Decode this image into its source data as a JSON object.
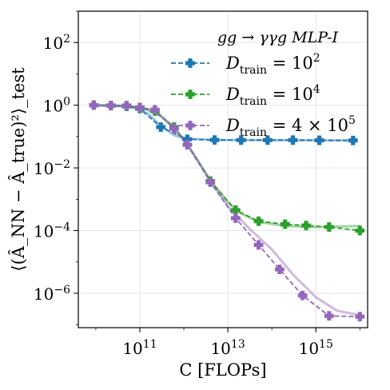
{
  "chart_data": {
    "type": "line",
    "title": "",
    "xlabel": "C [FLOPs]",
    "ylabel": "⟨(Â_NN − Â_true)²⟩_test",
    "xscale": "log",
    "yscale": "log",
    "xlim": [
      4000000000.0,
      1.5e+16
    ],
    "ylim": [
      8e-08,
      1000.0
    ],
    "xticks": [
      {
        "value": 100000000000.0,
        "label": "10^11"
      },
      {
        "value": 10000000000000.0,
        "label": "10^13"
      },
      {
        "value": 1000000000000000.0,
        "label": "10^15"
      }
    ],
    "yticks": [
      {
        "value": 1e-06,
        "label": "10^−6"
      },
      {
        "value": 0.0001,
        "label": "10^−4"
      },
      {
        "value": 0.01,
        "label": "10^−2"
      },
      {
        "value": 1,
        "label": "10^0"
      },
      {
        "value": 100,
        "label": "10^2"
      }
    ],
    "grid": true,
    "legend_placement": "top-right",
    "legend_title": "gg → γγg MLP-I",
    "series": [
      {
        "name": "D_train = 10^2",
        "color": "#1f77b4",
        "x": [
          9000000000.0,
          22000000000.0,
          50000000000.0,
          100000000000.0,
          300000000000.0,
          1200000000000.0,
          5000000000000.0,
          20000000000000.0,
          80000000000000.0,
          300000000000000.0,
          1200000000000000.0,
          7000000000000000.0
        ],
        "y": [
          1.0,
          0.97,
          0.92,
          0.78,
          0.2,
          0.082,
          0.078,
          0.077,
          0.077,
          0.077,
          0.076,
          0.075
        ],
        "fit": [
          [
            9000000000.0,
            1.0
          ],
          [
            30000000000.0,
            0.95
          ],
          [
            80000000000.0,
            0.82
          ],
          [
            150000000000.0,
            0.55
          ],
          [
            300000000000.0,
            0.22
          ],
          [
            600000000000.0,
            0.11
          ],
          [
            1200000000000.0,
            0.085
          ],
          [
            5000000000000.0,
            0.078
          ],
          [
            100000000000000.0,
            0.077
          ],
          [
            7000000000000000.0,
            0.075
          ]
        ]
      },
      {
        "name": "D_train = 10^4",
        "color": "#2ca02c",
        "x": [
          9000000000.0,
          22000000000.0,
          50000000000.0,
          100000000000.0,
          220000000000.0,
          600000000000.0,
          1200000000000.0,
          4000000000000.0,
          15000000000000.0,
          50000000000000.0,
          200000000000000.0,
          600000000000000.0,
          2000000000000000.0,
          1e+16
        ],
        "y": [
          1.0,
          0.98,
          0.95,
          0.82,
          0.65,
          0.2,
          0.055,
          0.0038,
          0.00045,
          0.0002,
          0.00016,
          0.000145,
          0.00013,
          0.0001
        ],
        "fit": [
          [
            9000000000.0,
            1.0
          ],
          [
            50000000000.0,
            0.95
          ],
          [
            150000000000.0,
            0.72
          ],
          [
            300000000000.0,
            0.45
          ],
          [
            600000000000.0,
            0.2
          ],
          [
            1200000000000.0,
            0.058
          ],
          [
            4000000000000.0,
            0.004
          ],
          [
            10000000000000.0,
            0.0008
          ],
          [
            20000000000000.0,
            0.00035
          ],
          [
            50000000000000.0,
            0.00019
          ],
          [
            200000000000000.0,
            0.00014
          ],
          [
            1000000000000000.0,
            0.00013
          ],
          [
            1e+16,
            0.00014
          ]
        ]
      },
      {
        "name": "D_train = 4 × 10^5",
        "color": "#9467bd",
        "x": [
          9000000000.0,
          22000000000.0,
          50000000000.0,
          100000000000.0,
          220000000000.0,
          600000000000.0,
          1200000000000.0,
          4000000000000.0,
          15000000000000.0,
          50000000000000.0,
          150000000000000.0,
          500000000000000.0,
          2000000000000000.0,
          1e+16
        ],
        "y": [
          1.0,
          0.98,
          0.98,
          0.85,
          0.72,
          0.18,
          0.055,
          0.0035,
          0.00025,
          3.5e-05,
          5.8e-06,
          8.5e-07,
          1.9e-07,
          1.8e-07
        ],
        "fit": [
          [
            9000000000.0,
            1.0
          ],
          [
            50000000000.0,
            0.96
          ],
          [
            150000000000.0,
            0.75
          ],
          [
            300000000000.0,
            0.45
          ],
          [
            600000000000.0,
            0.18
          ],
          [
            1200000000000.0,
            0.055
          ],
          [
            4000000000000.0,
            0.004
          ],
          [
            10000000000000.0,
            0.0006
          ],
          [
            30000000000000.0,
            0.00012
          ],
          [
            100000000000000.0,
            2.5e-05
          ],
          [
            300000000000000.0,
            4e-06
          ],
          [
            1000000000000000.0,
            7.5e-07
          ],
          [
            3000000000000000.0,
            2.8e-07
          ],
          [
            1e+16,
            2e-07
          ]
        ]
      }
    ]
  }
}
